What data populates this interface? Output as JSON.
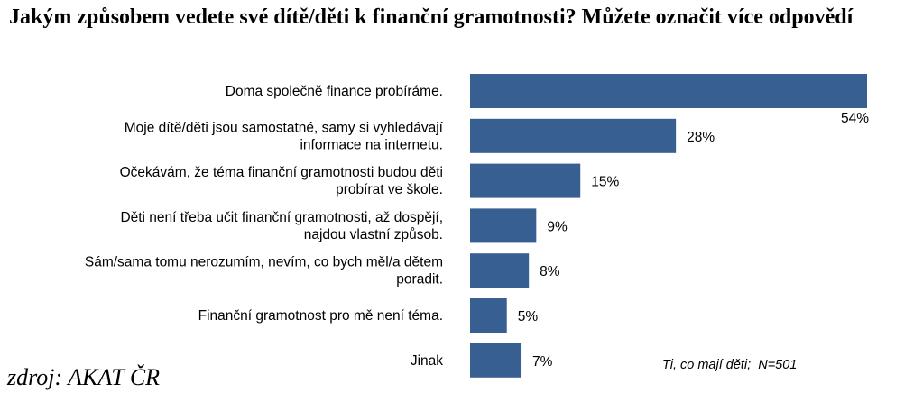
{
  "chart_data": {
    "type": "bar",
    "orientation": "horizontal",
    "title": "Jakým způsobem vedete své dítě/děti k finanční gramotnosti?  Můžete označit více odpovědí",
    "categories": [
      [
        "Doma společně finance probíráme."
      ],
      [
        "Moje dítě/děti jsou samostatné, samy si vyhledávají",
        "informace na internetu."
      ],
      [
        "Očekávám, že téma finanční gramotnosti budou děti",
        "probírat ve škole."
      ],
      [
        "Děti není třeba učit finanční gramotnosti, až dospějí,",
        "najdou vlastní způsob."
      ],
      [
        "Sám/sama tomu nerozumím, nevím, co bych měl/a dětem",
        "poradit."
      ],
      [
        "Finanční gramotnost pro mě není téma."
      ],
      [
        "Jinak"
      ]
    ],
    "values": [
      54,
      28,
      15,
      9,
      8,
      5,
      7
    ],
    "value_labels": [
      "54%",
      "28%",
      "15%",
      "9%",
      "8%",
      "5%",
      "7%"
    ],
    "unit": "%",
    "xlim": [
      0,
      54
    ],
    "bar_color": "#385f92",
    "grid": false,
    "legend": "none"
  },
  "note": "Ti, co mají děti;  N=501",
  "source": "zdroj: AKAT ČR"
}
